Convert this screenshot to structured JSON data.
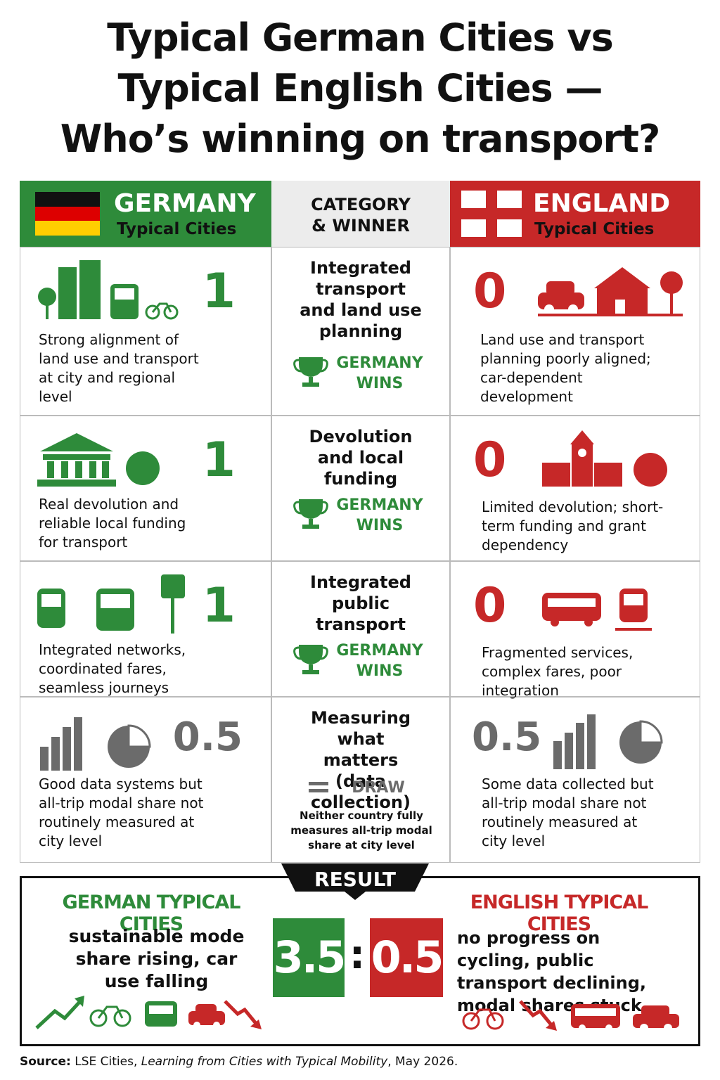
{
  "title": [
    "Typical German Cities vs",
    "Typical English Cities —",
    "Who’s winning on transport?"
  ],
  "header": {
    "germany": {
      "name": "GERMANY",
      "subtitle": "Typical Cities"
    },
    "category": [
      "CATEGORY",
      "& WINNER"
    ],
    "england": {
      "name": "ENGLAND",
      "subtitle": "Typical Cities"
    }
  },
  "colors": {
    "germany": "#2e8b3a",
    "england": "#c62828",
    "neutral": "#6b6b6b"
  },
  "rows": [
    {
      "germany_score": 1,
      "germany_text": "Strong alignment of land use and transport at city and regional level",
      "category": "Integrated transport and land use planning",
      "winner": "GERMANY WINS",
      "england_score": 0,
      "england_text": "Land use and transport planning poorly aligned; car-dependent development",
      "germany_color": "#2e8b3a",
      "england_color": "#c62828",
      "winner_color": "#2e8b3a"
    },
    {
      "germany_score": 1,
      "germany_text": "Real devolution and reliable local funding for transport",
      "category": "Devolution and local funding",
      "winner": "GERMANY WINS",
      "england_score": 0,
      "england_text": "Limited devolution; short-term funding and grant dependency",
      "germany_color": "#2e8b3a",
      "england_color": "#c62828",
      "winner_color": "#2e8b3a"
    },
    {
      "germany_score": 1,
      "germany_text": "Integrated networks, coordinated fares, seamless journeys",
      "category": "Integrated public transport",
      "winner": "GERMANY WINS",
      "england_score": 0,
      "england_text": "Fragmented services, complex fares, poor integration",
      "germany_color": "#2e8b3a",
      "england_color": "#c62828",
      "winner_color": "#2e8b3a"
    },
    {
      "germany_score": 0.5,
      "germany_text": "Good data systems but all-trip modal share not routinely measured at city level",
      "category": "Measuring what matters (data collection)",
      "winner": "DRAW",
      "note": "Neither country fully measures all-trip modal share at city level",
      "england_score": 0.5,
      "england_text": "Some data collected but all-trip modal share not routinely measured at city level",
      "germany_color": "#6b6b6b",
      "england_color": "#6b6b6b",
      "winner_color": "#6b6b6b"
    }
  ],
  "result": {
    "label": "RESULT",
    "germany": {
      "heading": "GERMAN TYPICAL CITIES",
      "text": "sustainable mode share rising, car use falling",
      "score": 3.5
    },
    "separator": ":",
    "england": {
      "heading": "ENGLISH TYPICAL CITIES",
      "text": "no progress on cycling, public transport declining, modal shares stuck",
      "score": 0.5
    }
  },
  "source": {
    "label": "Source:",
    "text": "LSE Cities,",
    "work": "Learning from Cities with Typical Mobility",
    "date": ", May 2026."
  }
}
